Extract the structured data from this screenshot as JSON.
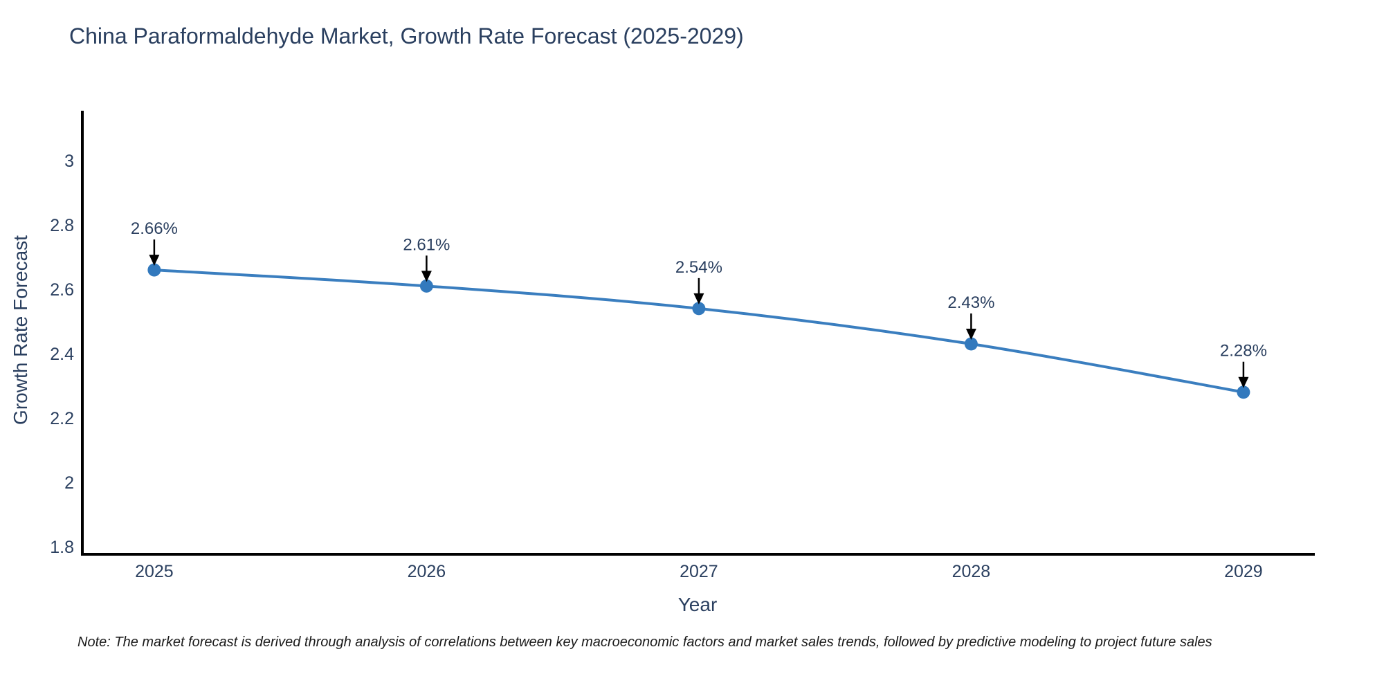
{
  "chart_data": {
    "type": "line",
    "title": "China Paraformaldehyde Market, Growth Rate Forecast (2025-2029)",
    "xlabel": "Year",
    "ylabel": "Growth Rate Forecast",
    "x": [
      2025,
      2026,
      2027,
      2028,
      2029
    ],
    "series": [
      {
        "name": "Growth Rate Forecast",
        "values": [
          2.66,
          2.61,
          2.54,
          2.43,
          2.28
        ]
      }
    ],
    "point_labels": [
      "2.66%",
      "2.61%",
      "2.54%",
      "2.43%",
      "2.28%"
    ],
    "xticks": [
      "2025",
      "2026",
      "2027",
      "2028",
      "2029"
    ],
    "xtick_values": [
      2025,
      2026,
      2027,
      2028,
      2029
    ],
    "yticks": [
      "1.8",
      "2",
      "2.2",
      "2.4",
      "2.6",
      "2.8",
      "3"
    ],
    "ytick_values": [
      1.8,
      2.0,
      2.2,
      2.4,
      2.6,
      2.8,
      3.0
    ],
    "xlim": [
      2024.736,
      2029.262
    ],
    "ylim": [
      1.776,
      3.155
    ],
    "grid": false,
    "legend_position": "none",
    "line_shape": "spline",
    "annotations_have_arrows": true,
    "note": "Note: The market forecast is derived through analysis of correlations between key macroeconomic factors and market sales trends, followed by predictive modeling to project future sales",
    "colors": {
      "line": "#3a7ebf",
      "marker": "#3279bd",
      "axis": "#000000",
      "title_text": "#2a3f5f",
      "tick_text": "#2a3f5f",
      "annotation_text": "#2a3f5f",
      "arrow": "#000000",
      "note_text": "#1a1a1a",
      "background": "#ffffff"
    }
  }
}
